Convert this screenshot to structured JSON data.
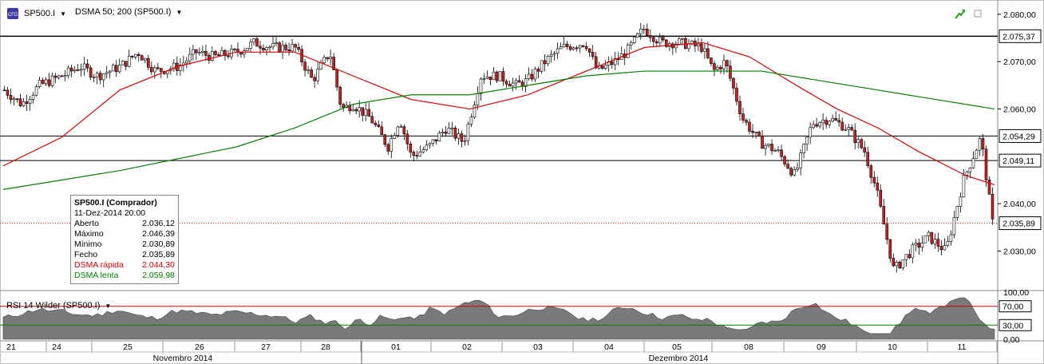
{
  "toolbar": {
    "symbol": "SP500.I",
    "indicator": "DSMA 50; 200 (SP500.I)"
  },
  "infobox": {
    "title": "SP500.I (Comprador)",
    "datetime": "11-Dez-2014 20:00",
    "rows": [
      {
        "label": "Aberto",
        "value": "2.036,12",
        "color": "#000000"
      },
      {
        "label": "Máximo",
        "value": "2.046,39",
        "color": "#000000"
      },
      {
        "label": "Mínimo",
        "value": "2.030,89",
        "color": "#000000"
      },
      {
        "label": "Fecho",
        "value": "2.035,89",
        "color": "#000000"
      },
      {
        "label": "DSMA rápida",
        "value": "2.044,30",
        "color": "#dd0000"
      },
      {
        "label": "DSMA lenta",
        "value": "2.059,98",
        "color": "#008000"
      }
    ]
  },
  "rsi": {
    "title": "RSI 14 Wilder (SP500.I)",
    "upper_label": "70,00",
    "lower_label": "30,00",
    "axis_labels": [
      "100,00",
      "0,00"
    ]
  },
  "chart_data": {
    "type": "candlestick",
    "price_axis": {
      "ylim": [
        2022,
        2082
      ],
      "tick_labels": [
        "2.080,00",
        "2.070,00",
        "2.060,00",
        "2.040,00",
        "2.030,00"
      ],
      "tick_values": [
        2080,
        2070,
        2060,
        2040,
        2030
      ]
    },
    "horizontal_lines": [
      {
        "value": 2075.37,
        "label": "2.075,37",
        "style": "solid"
      },
      {
        "value": 2054.29,
        "label": "2.054,29",
        "style": "solid"
      },
      {
        "value": 2049.11,
        "label": "2.049,11",
        "style": "solid"
      },
      {
        "value": 2035.89,
        "label": "2.035,89",
        "style": "dotted-red"
      }
    ],
    "x_days": [
      "21",
      "24",
      "25",
      "26",
      "27",
      "28",
      "01",
      "02",
      "03",
      "04",
      "05",
      "08",
      "09",
      "10",
      "11"
    ],
    "months": [
      "Novembro 2014",
      "Dezembro 2014"
    ],
    "close_path": [
      [
        0,
        2064
      ],
      [
        0.3,
        2061
      ],
      [
        0.6,
        2065
      ],
      [
        1,
        2067
      ],
      [
        1.3,
        2069
      ],
      [
        1.6,
        2067
      ],
      [
        2,
        2069
      ],
      [
        2.3,
        2072
      ],
      [
        2.6,
        2068
      ],
      [
        3,
        2069
      ],
      [
        3.3,
        2072
      ],
      [
        3.6,
        2071
      ],
      [
        4,
        2072
      ],
      [
        4.3,
        2074
      ],
      [
        4.6,
        2073
      ],
      [
        5,
        2073
      ],
      [
        5.3,
        2066
      ],
      [
        5.6,
        2072
      ],
      [
        5.8,
        2060
      ],
      [
        6,
        2061
      ],
      [
        6.3,
        2058
      ],
      [
        6.6,
        2052
      ],
      [
        6.8,
        2058
      ],
      [
        7,
        2050
      ],
      [
        7.3,
        2052
      ],
      [
        7.6,
        2056
      ],
      [
        7.9,
        2053
      ],
      [
        8.2,
        2067
      ],
      [
        8.5,
        2067
      ],
      [
        8.8,
        2065
      ],
      [
        9,
        2066
      ],
      [
        9.3,
        2070
      ],
      [
        9.6,
        2073
      ],
      [
        10,
        2074
      ],
      [
        10.2,
        2068
      ],
      [
        10.5,
        2070
      ],
      [
        10.7,
        2072
      ],
      [
        11,
        2077
      ],
      [
        11.3,
        2074
      ],
      [
        11.6,
        2074
      ],
      [
        12,
        2073
      ],
      [
        12.2,
        2068
      ],
      [
        12.4,
        2070
      ],
      [
        12.7,
        2058
      ],
      [
        13,
        2053
      ],
      [
        13.3,
        2051
      ],
      [
        13.6,
        2046
      ],
      [
        13.9,
        2057
      ],
      [
        14.2,
        2058
      ],
      [
        14.5,
        2056
      ],
      [
        14.8,
        2051
      ],
      [
        15,
        2043
      ],
      [
        15.3,
        2026
      ],
      [
        15.6,
        2030
      ],
      [
        15.9,
        2033
      ],
      [
        16.2,
        2030
      ],
      [
        16.5,
        2045
      ],
      [
        16.8,
        2054
      ],
      [
        17,
        2036
      ]
    ],
    "series": [
      {
        "name": "DSMA rápida",
        "color": "#dd0000",
        "values": [
          [
            0,
            2048
          ],
          [
            1,
            2054
          ],
          [
            2,
            2064
          ],
          [
            3,
            2069
          ],
          [
            4,
            2072
          ],
          [
            5,
            2072
          ],
          [
            6,
            2067
          ],
          [
            7,
            2062
          ],
          [
            8,
            2060
          ],
          [
            9,
            2063
          ],
          [
            10,
            2068
          ],
          [
            11,
            2073
          ],
          [
            12,
            2074
          ],
          [
            12.8,
            2071
          ],
          [
            13.6,
            2065
          ],
          [
            14.3,
            2060
          ],
          [
            15,
            2056
          ],
          [
            15.7,
            2051
          ],
          [
            16.5,
            2046
          ],
          [
            17,
            2044
          ]
        ]
      },
      {
        "name": "DSMA lenta",
        "color": "#008000",
        "values": [
          [
            0,
            2043
          ],
          [
            2,
            2047
          ],
          [
            4,
            2052
          ],
          [
            5,
            2056
          ],
          [
            6,
            2061
          ],
          [
            7,
            2063
          ],
          [
            8,
            2063
          ],
          [
            9,
            2065
          ],
          [
            10,
            2067
          ],
          [
            11,
            2068
          ],
          [
            12,
            2068
          ],
          [
            13,
            2068
          ],
          [
            14,
            2066
          ],
          [
            15,
            2064
          ],
          [
            16,
            2062
          ],
          [
            17,
            2060
          ]
        ]
      }
    ],
    "last_values": {
      "open": 2036.12,
      "high": 2046.39,
      "low": 2030.89,
      "close": 2035.89,
      "fast": 2044.3,
      "slow": 2059.98
    }
  }
}
